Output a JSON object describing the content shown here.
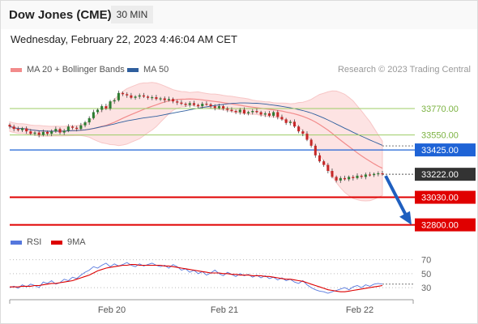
{
  "header": {
    "title": "Dow Jones (CME)",
    "timeframe": "30 MIN"
  },
  "date_line": "Wednesday, February 22, 2023 4:46:04 AM CET",
  "legend": {
    "ma20": {
      "label": "MA 20 + Bollinger Bands",
      "color": "#f28b8b"
    },
    "ma50": {
      "label": "MA 50",
      "color": "#2f5f9e"
    },
    "rsi": {
      "label": "RSI",
      "color": "#5577dd"
    },
    "nine_ma": {
      "label": "9MA",
      "color": "#dd0000"
    }
  },
  "credit": "Research © 2023 Trading Central",
  "chart_data": [
    {
      "type": "candlestick",
      "ylim": [
        32750,
        34000
      ],
      "x_ticks": [
        "Feb 20",
        "Feb 21",
        "Feb 22"
      ],
      "levels": [
        {
          "value": 33770,
          "label": "33770.00",
          "kind": "resistance",
          "color": "#9ccc65"
        },
        {
          "value": 33550,
          "label": "33550.00",
          "kind": "resistance",
          "color": "#9ccc65"
        },
        {
          "value": 33425,
          "label": "33425.00",
          "kind": "pivot",
          "color": "#1e63d6"
        },
        {
          "value": 33222,
          "label": "33222.00",
          "kind": "last",
          "color": "#333333"
        },
        {
          "value": 33030,
          "label": "33030.00",
          "kind": "support",
          "color": "#e00000"
        },
        {
          "value": 32800,
          "label": "32800.00",
          "kind": "support",
          "color": "#e00000"
        }
      ],
      "close": [
        33620,
        33600,
        33590,
        33605,
        33580,
        33560,
        33570,
        33550,
        33575,
        33560,
        33580,
        33600,
        33570,
        33585,
        33620,
        33610,
        33600,
        33630,
        33655,
        33690,
        33740,
        33760,
        33790,
        33770,
        33830,
        33840,
        33900,
        33890,
        33880,
        33860,
        33870,
        33880,
        33870,
        33860,
        33865,
        33850,
        33855,
        33840,
        33850,
        33830,
        33820,
        33810,
        33800,
        33815,
        33800,
        33790,
        33810,
        33805,
        33790,
        33775,
        33790,
        33770,
        33760,
        33750,
        33740,
        33760,
        33730,
        33740,
        33750,
        33740,
        33720,
        33730,
        33710,
        33740,
        33700,
        33680,
        33650,
        33660,
        33620,
        33580,
        33560,
        33510,
        33460,
        33380,
        33330,
        33300,
        33250,
        33200,
        33170,
        33190,
        33180,
        33200,
        33190,
        33210,
        33200,
        33220,
        33215,
        33225,
        33230,
        33222
      ],
      "ma50_visible_label": "MA 50",
      "trend_arrow": {
        "from": 33222,
        "to": 32800,
        "direction": "down"
      }
    },
    {
      "type": "line",
      "name": "RSI panel",
      "ylim": [
        15,
        80
      ],
      "y_ticks": [
        70,
        50,
        30
      ],
      "rsi": [
        30,
        32,
        29,
        34,
        31,
        35,
        33,
        30,
        38,
        36,
        40,
        35,
        37,
        42,
        40,
        45,
        43,
        48,
        52,
        55,
        60,
        58,
        62,
        65,
        60,
        64,
        61,
        63,
        66,
        62,
        60,
        64,
        61,
        63,
        65,
        62,
        60,
        62,
        58,
        63,
        60,
        55,
        57,
        52,
        55,
        50,
        53,
        48,
        51,
        55,
        50,
        47,
        52,
        49,
        46,
        50,
        47,
        49,
        45,
        48,
        44,
        47,
        43,
        45,
        41,
        44,
        40,
        42,
        38,
        36,
        40,
        34,
        30,
        27,
        25,
        24,
        22,
        24,
        26,
        28,
        30,
        27,
        31,
        33,
        30,
        34,
        32,
        35,
        36,
        35
      ],
      "nine_ma": [
        31,
        31,
        31,
        32,
        32,
        32,
        33,
        33,
        34,
        35,
        36,
        36,
        37,
        38,
        39,
        40,
        42,
        44,
        46,
        48,
        51,
        54,
        56,
        58,
        59,
        60,
        61,
        62,
        62,
        63,
        63,
        62,
        62,
        62,
        62,
        62,
        62,
        61,
        61,
        60,
        59,
        58,
        57,
        56,
        55,
        54,
        53,
        52,
        51,
        51,
        51,
        50,
        50,
        49,
        49,
        48,
        48,
        48,
        47,
        47,
        47,
        46,
        46,
        45,
        44,
        43,
        42,
        42,
        41,
        40,
        39,
        37,
        35,
        33,
        31,
        29,
        27,
        26,
        25,
        24,
        24,
        25,
        26,
        27,
        28,
        29,
        30,
        31,
        32,
        33
      ]
    }
  ]
}
